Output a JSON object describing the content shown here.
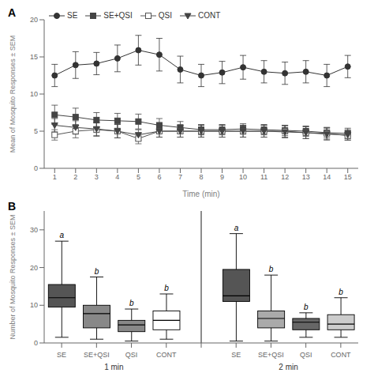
{
  "chart_data": [
    {
      "type": "line",
      "title": "A",
      "xlabel": "Time (min)",
      "ylabel": "Mean of Mosquito Responses ± SEM",
      "x": [
        1,
        2,
        3,
        4,
        5,
        6,
        7,
        8,
        9,
        10,
        11,
        12,
        13,
        14,
        15
      ],
      "xlim": [
        0.5,
        15.5
      ],
      "xticks": [
        1,
        2,
        3,
        4,
        5,
        6,
        7,
        8,
        9,
        10,
        11,
        12,
        13,
        14,
        15
      ],
      "ylim": [
        0,
        20
      ],
      "yticks": [
        0,
        5,
        10,
        15,
        20
      ],
      "legend": "upper left",
      "series": [
        {
          "name": "SE",
          "color": "#333333",
          "marker": "circle",
          "values": [
            12.5,
            13.9,
            14.1,
            14.8,
            15.9,
            15.3,
            13.3,
            12.5,
            12.9,
            13.6,
            13.0,
            12.8,
            13.0,
            12.5,
            13.7
          ],
          "errors": [
            1.5,
            1.8,
            1.5,
            1.8,
            2.0,
            2.2,
            1.8,
            1.5,
            1.5,
            1.6,
            1.5,
            1.5,
            1.5,
            1.5,
            1.5
          ]
        },
        {
          "name": "SE+QSI",
          "color": "#444444",
          "marker": "square",
          "values": [
            7.2,
            6.9,
            6.5,
            6.4,
            6.3,
            5.8,
            5.5,
            5.2,
            5.2,
            5.3,
            5.2,
            5.1,
            5.0,
            4.8,
            4.7
          ],
          "errors": [
            1.3,
            1.2,
            1.0,
            1.0,
            1.0,
            0.9,
            0.8,
            0.7,
            0.7,
            0.7,
            0.7,
            0.7,
            0.7,
            0.7,
            0.7
          ]
        },
        {
          "name": "QSI",
          "color": "#555555",
          "marker": "open-square",
          "values": [
            4.5,
            5.0,
            5.2,
            5.0,
            4.0,
            5.0,
            5.0,
            5.0,
            5.0,
            5.0,
            5.0,
            5.0,
            4.8,
            4.7,
            4.4
          ],
          "errors": [
            0.7,
            0.9,
            0.9,
            0.9,
            0.7,
            0.8,
            0.8,
            0.8,
            0.8,
            0.8,
            0.8,
            0.8,
            0.8,
            0.8,
            0.6
          ]
        },
        {
          "name": "CONT",
          "color": "#444444",
          "marker": "triangle-down",
          "values": [
            5.8,
            5.5,
            5.3,
            5.0,
            4.5,
            5.0,
            5.0,
            5.0,
            5.0,
            5.0,
            5.0,
            4.9,
            4.8,
            4.6,
            4.5
          ],
          "errors": [
            0.9,
            0.9,
            0.9,
            0.9,
            0.7,
            0.8,
            0.8,
            0.8,
            0.8,
            0.8,
            0.8,
            0.8,
            0.8,
            0.8,
            0.7
          ]
        }
      ]
    },
    {
      "type": "box",
      "title": "B",
      "ylabel": "Number of Mosquito Responses ± SEM",
      "categories": [
        "SE",
        "SE+QSI",
        "QSI",
        "CONT"
      ],
      "ylim": [
        0,
        35
      ],
      "yticks": [
        0,
        10,
        20,
        30
      ],
      "groups": [
        {
          "name": "1 min",
          "colors": [
            "#555555",
            "#888888",
            "#888888",
            "#ffffff"
          ],
          "letters": [
            "a",
            "b",
            "b",
            "b"
          ],
          "whislo": [
            1.5,
            1.0,
            0.5,
            1.0
          ],
          "q1": [
            9.5,
            4.0,
            3.0,
            3.5
          ],
          "med": [
            12.0,
            7.8,
            4.8,
            6.0
          ],
          "q3": [
            15.5,
            10.0,
            6.0,
            8.5
          ],
          "whishi": [
            27.0,
            17.5,
            9.0,
            13.0
          ]
        },
        {
          "name": "2 min",
          "colors": [
            "#555555",
            "#aaaaaa",
            "#666666",
            "#cccccc"
          ],
          "letters": [
            "a",
            "b",
            "b",
            "b"
          ],
          "whislo": [
            0.5,
            0.5,
            1.5,
            1.5
          ],
          "q1": [
            11.0,
            4.0,
            3.5,
            3.5
          ],
          "med": [
            12.5,
            6.5,
            5.5,
            5.0
          ],
          "q3": [
            19.5,
            8.5,
            6.5,
            7.5
          ],
          "whishi": [
            29.0,
            18.0,
            8.0,
            12.0
          ]
        }
      ]
    }
  ]
}
